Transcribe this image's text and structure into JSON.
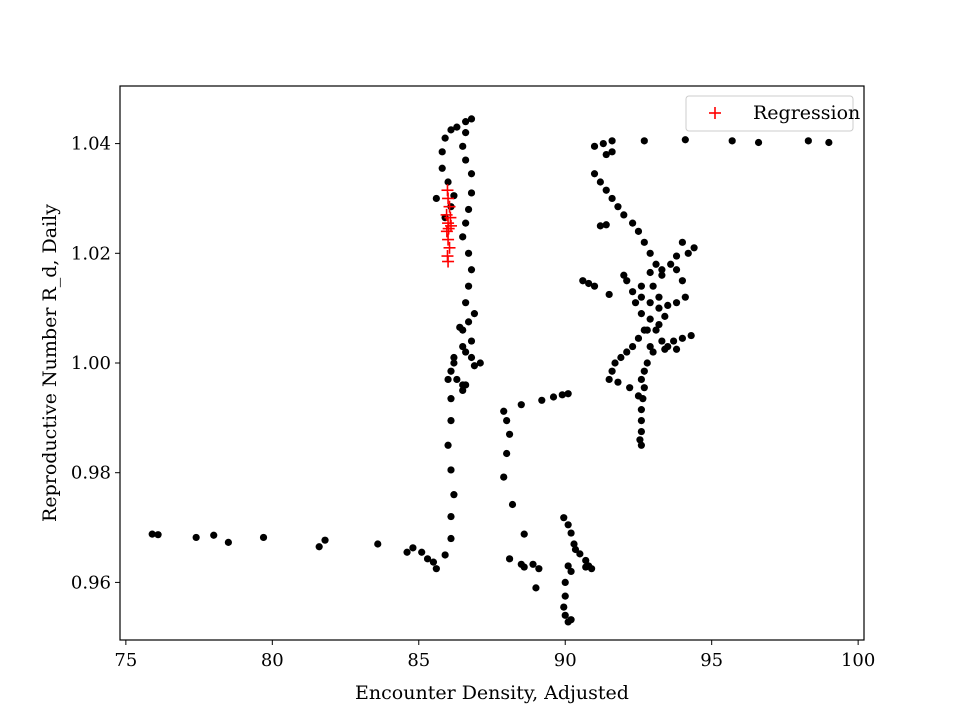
{
  "chart_data": {
    "type": "scatter",
    "title": "",
    "xlabel": "Encounter Density, Adjusted",
    "ylabel": "Reproductive Number R_d, Daily",
    "xlim": [
      74.8,
      100.2
    ],
    "ylim": [
      0.9495,
      1.0505
    ],
    "xticks": [
      75,
      80,
      85,
      90,
      95,
      100
    ],
    "yticks": [
      0.96,
      0.98,
      1.0,
      1.02,
      1.04
    ],
    "xtick_labels": [
      "75",
      "80",
      "85",
      "90",
      "95",
      "100"
    ],
    "ytick_labels": [
      "0.96",
      "0.98",
      "1.00",
      "1.02",
      "1.04"
    ],
    "legend": {
      "position": "top-right",
      "entries": [
        "Regression"
      ]
    },
    "grid": false,
    "series": [
      {
        "marker": "dot",
        "color": "#000000",
        "points": [
          [
            75.9,
            0.9688
          ],
          [
            76.1,
            0.9687
          ],
          [
            77.4,
            0.9682
          ],
          [
            78.0,
            0.9686
          ],
          [
            78.5,
            0.9673
          ],
          [
            79.7,
            0.9682
          ],
          [
            81.6,
            0.9665
          ],
          [
            81.8,
            0.9677
          ],
          [
            83.6,
            0.967
          ],
          [
            84.6,
            0.9655
          ],
          [
            84.8,
            0.9663
          ],
          [
            85.1,
            0.9655
          ],
          [
            85.3,
            0.9643
          ],
          [
            85.5,
            0.9637
          ],
          [
            85.6,
            0.9625
          ],
          [
            85.9,
            0.965
          ],
          [
            86.1,
            0.968
          ],
          [
            86.1,
            0.972
          ],
          [
            86.2,
            0.976
          ],
          [
            86.1,
            0.9805
          ],
          [
            86.0,
            0.985
          ],
          [
            86.1,
            0.9895
          ],
          [
            86.1,
            0.9935
          ],
          [
            86.0,
            0.997
          ],
          [
            86.2,
            1.0
          ],
          [
            86.5,
            1.003
          ],
          [
            86.8,
            1.001
          ],
          [
            87.1,
            1.0
          ],
          [
            86.6,
            0.996
          ],
          [
            86.5,
            0.995
          ],
          [
            86.5,
            1.006
          ],
          [
            86.6,
            1.011
          ],
          [
            86.7,
            1.014
          ],
          [
            86.8,
            1.017
          ],
          [
            86.7,
            1.02
          ],
          [
            86.5,
            1.023
          ],
          [
            86.6,
            1.0255
          ],
          [
            86.7,
            1.028
          ],
          [
            86.8,
            1.031
          ],
          [
            86.8,
            1.0345
          ],
          [
            86.6,
            1.037
          ],
          [
            86.5,
            1.0395
          ],
          [
            86.6,
            1.042
          ],
          [
            86.8,
            1.0445
          ],
          [
            86.6,
            1.044
          ],
          [
            86.3,
            1.043
          ],
          [
            86.1,
            1.0425
          ],
          [
            85.9,
            1.041
          ],
          [
            85.8,
            1.0385
          ],
          [
            85.8,
            1.0355
          ],
          [
            86.0,
            1.033
          ],
          [
            86.2,
            1.0305
          ],
          [
            86.1,
            1.0285
          ],
          [
            85.9,
            1.0265
          ],
          [
            85.6,
            1.03
          ],
          [
            86.4,
            1.0065
          ],
          [
            86.7,
            1.0075
          ],
          [
            86.9,
            1.009
          ],
          [
            86.8,
            1.004
          ],
          [
            86.6,
            1.002
          ],
          [
            86.9,
            0.9995
          ],
          [
            86.5,
            0.996
          ],
          [
            86.3,
            0.997
          ],
          [
            86.1,
            0.9985
          ],
          [
            86.2,
            1.001
          ],
          [
            87.9,
            0.9912
          ],
          [
            88.0,
            0.9895
          ],
          [
            88.1,
            0.987
          ],
          [
            88.0,
            0.9835
          ],
          [
            87.9,
            0.9792
          ],
          [
            88.2,
            0.9742
          ],
          [
            88.6,
            0.9688
          ],
          [
            88.1,
            0.9643
          ],
          [
            88.5,
            0.9633
          ],
          [
            88.6,
            0.9628
          ],
          [
            88.9,
            0.9633
          ],
          [
            89.1,
            0.9625
          ],
          [
            89.0,
            0.959
          ],
          [
            88.5,
            0.9924
          ],
          [
            89.2,
            0.9932
          ],
          [
            89.6,
            0.9938
          ],
          [
            89.9,
            0.9942
          ],
          [
            90.1,
            0.9944
          ],
          [
            89.95,
            0.9718
          ],
          [
            90.1,
            0.9705
          ],
          [
            90.2,
            0.969
          ],
          [
            90.3,
            0.967
          ],
          [
            90.35,
            0.966
          ],
          [
            90.5,
            0.9652
          ],
          [
            90.7,
            0.964
          ],
          [
            90.8,
            0.963
          ],
          [
            90.9,
            0.9625
          ],
          [
            90.7,
            0.9628
          ],
          [
            90.1,
            0.963
          ],
          [
            90.2,
            0.962
          ],
          [
            90.0,
            0.96
          ],
          [
            90.0,
            0.9575
          ],
          [
            89.95,
            0.9555
          ],
          [
            90.0,
            0.954
          ],
          [
            90.1,
            0.9528
          ],
          [
            90.2,
            0.9532
          ],
          [
            90.6,
            1.015
          ],
          [
            90.8,
            1.0145
          ],
          [
            91.0,
            1.014
          ],
          [
            91.5,
            1.0125
          ],
          [
            92.0,
            1.016
          ],
          [
            92.1,
            1.015
          ],
          [
            92.3,
            1.013
          ],
          [
            92.6,
            1.012
          ],
          [
            92.9,
            1.011
          ],
          [
            93.2,
            1.01
          ],
          [
            93.5,
            1.0105
          ],
          [
            93.8,
            1.011
          ],
          [
            94.1,
            1.012
          ],
          [
            94.0,
            1.015
          ],
          [
            93.8,
            1.017
          ],
          [
            94.2,
            1.02
          ],
          [
            94.4,
            1.021
          ],
          [
            94.0,
            1.022
          ],
          [
            93.8,
            1.0195
          ],
          [
            93.6,
            1.018
          ],
          [
            93.3,
            1.017
          ],
          [
            92.9,
            1.0165
          ],
          [
            92.6,
            1.014
          ],
          [
            92.4,
            1.011
          ],
          [
            92.6,
            1.009
          ],
          [
            92.8,
            1.006
          ],
          [
            92.9,
            1.003
          ],
          [
            92.8,
            1.0
          ],
          [
            92.7,
            0.9985
          ],
          [
            92.6,
            0.997
          ],
          [
            92.7,
            0.9955
          ],
          [
            92.65,
            0.9935
          ],
          [
            92.6,
            0.9915
          ],
          [
            92.6,
            0.9895
          ],
          [
            92.6,
            0.9875
          ],
          [
            92.55,
            0.986
          ],
          [
            92.6,
            0.985
          ],
          [
            92.5,
            0.994
          ],
          [
            92.2,
            0.9955
          ],
          [
            91.8,
            0.9965
          ],
          [
            91.5,
            0.997
          ],
          [
            91.6,
            0.9985
          ],
          [
            91.7,
            1.0
          ],
          [
            91.9,
            1.001
          ],
          [
            92.1,
            1.002
          ],
          [
            92.3,
            1.003
          ],
          [
            92.5,
            1.0045
          ],
          [
            92.7,
            1.006
          ],
          [
            92.9,
            1.008
          ],
          [
            93.1,
            1.006
          ],
          [
            93.3,
            1.004
          ],
          [
            93.5,
            1.003
          ],
          [
            93.7,
            1.004
          ],
          [
            94.0,
            1.0045
          ],
          [
            94.3,
            1.005
          ],
          [
            93.8,
            1.0025
          ],
          [
            93.4,
            1.0025
          ],
          [
            93.0,
            1.002
          ],
          [
            93.2,
            1.007
          ],
          [
            93.4,
            1.0085
          ],
          [
            93.2,
            1.012
          ],
          [
            93.0,
            1.014
          ],
          [
            93.3,
            1.016
          ],
          [
            93.1,
            1.018
          ],
          [
            92.9,
            1.02
          ],
          [
            92.7,
            1.022
          ],
          [
            92.5,
            1.024
          ],
          [
            92.3,
            1.0255
          ],
          [
            92.0,
            1.027
          ],
          [
            91.8,
            1.0285
          ],
          [
            91.6,
            1.03
          ],
          [
            91.4,
            1.0315
          ],
          [
            91.2,
            1.033
          ],
          [
            91.0,
            1.0345
          ],
          [
            91.4,
            1.038
          ],
          [
            91.6,
            1.0385
          ],
          [
            91.6,
            1.0405
          ],
          [
            91.3,
            1.04
          ],
          [
            91.0,
            1.0395
          ],
          [
            91.2,
            1.025
          ],
          [
            91.4,
            1.0252
          ],
          [
            92.7,
            1.0405
          ],
          [
            94.1,
            1.0407
          ],
          [
            95.7,
            1.0405
          ],
          [
            96.6,
            1.0402
          ],
          [
            98.3,
            1.0405
          ],
          [
            99.0,
            1.0402
          ]
        ]
      },
      {
        "name": "Regression",
        "marker": "plus",
        "color": "#ff0000",
        "points": [
          [
            85.98,
            1.0315
          ],
          [
            86.0,
            1.03
          ],
          [
            86.05,
            1.0285
          ],
          [
            85.95,
            1.027
          ],
          [
            86.08,
            1.0265
          ],
          [
            86.0,
            1.0255
          ],
          [
            86.1,
            1.025
          ],
          [
            86.02,
            1.0245
          ],
          [
            85.96,
            1.024
          ],
          [
            86.0,
            1.0225
          ],
          [
            86.05,
            1.021
          ],
          [
            85.98,
            1.0195
          ],
          [
            86.0,
            1.0185
          ]
        ]
      }
    ]
  }
}
